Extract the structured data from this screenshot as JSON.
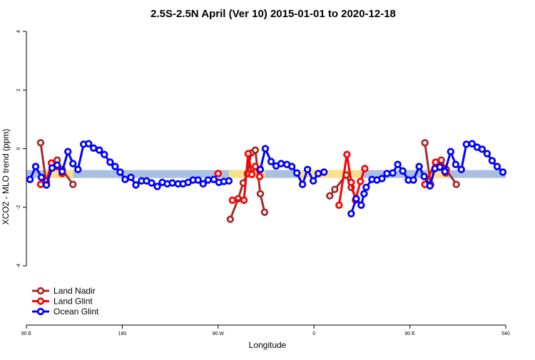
{
  "chart_data": {
    "type": "line",
    "title": "2.5S-2.5N April (Ver 10)   2015-01-01 to 2020-12-18",
    "x_label": "Longitude",
    "y_label": "XCO2 - MLO trend (ppm)",
    "xlim": [
      90,
      540
    ],
    "ylim": [
      -6.02,
      4.1
    ],
    "xticks": [
      {
        "value": 90,
        "label": "90 E"
      },
      180,
      {
        "value": 270,
        "label": "90 W"
      },
      {
        "value": 360,
        "label": "0"
      },
      {
        "value": 450,
        "label": "90 E"
      },
      540
    ],
    "yticks": [
      4,
      2,
      0,
      -2,
      -4
    ],
    "legend": "bottom-left",
    "band": {
      "low": -1.0,
      "high": -0.73,
      "color": "#a9c0e0"
    },
    "highlight": {
      "color": "#fde08a",
      "ranges": [
        [
          108,
          134
        ],
        [
          280,
          314
        ],
        [
          345,
          404
        ],
        [
          466,
          485
        ]
      ]
    },
    "series": [
      {
        "name": "Land Nadir",
        "color": "#a52a2a",
        "x": [
          103.4,
          108.8,
          113.5,
          118.9,
          123.6,
          133.7,
          null,
          281.4,
          288.8,
          293.5,
          297.5,
          300.9,
          304.9,
          309.6,
          313.6,
          null,
          374.8,
          379.5,
          390.2,
          394.9,
          399.6,
          null,
          464.1,
          469.5,
          474.2,
          479.5,
          484.2,
          493.6
        ],
        "values": [
          0.2,
          -1.22,
          -0.49,
          -0.39,
          -0.71,
          -1.22,
          null,
          -2.41,
          -1.71,
          -1.17,
          -0.85,
          -0.15,
          -0.05,
          -1.54,
          -2.17,
          null,
          -1.61,
          -1.39,
          -0.9,
          -1.32,
          -1.71,
          null,
          0.2,
          -1.22,
          -0.49,
          -0.39,
          -0.71,
          -1.22
        ]
      },
      {
        "name": "Land Glint",
        "color": "#ff0000",
        "x": [
          103.4,
          108.8,
          113.5,
          118.9,
          123.6,
          null,
          270.0,
          null,
          283.4,
          294.2,
          298.2,
          301.6,
          304.9,
          309.0,
          null,
          383.5,
          390.9,
          394.9,
          398.9,
          403.6,
          407.7,
          null,
          464.1,
          474.2,
          478.9,
          483.6
        ],
        "values": [
          -1.22,
          -1.12,
          -0.49,
          -0.61,
          -0.85,
          null,
          -0.85,
          null,
          -1.76,
          -1.76,
          -0.17,
          -0.88,
          -0.61,
          -0.95,
          null,
          -1.93,
          -0.2,
          -1.15,
          -1.76,
          -1.12,
          -0.68,
          null,
          -1.22,
          -0.46,
          -0.59,
          -0.83
        ]
      },
      {
        "name": "Ocean Glint",
        "color": "#0000ff",
        "x": [
          93.4,
          98.7,
          104.1,
          108.8,
          114.2,
          118.9,
          123.6,
          129.0,
          133.7,
          138.4,
          143.7,
          148.4,
          153.1,
          158.5,
          163.2,
          168.6,
          173.3,
          178.0,
          182.7,
          188.1,
          192.8,
          198.1,
          202.8,
          207.5,
          212.9,
          217.6,
          222.3,
          227.0,
          232.4,
          237.1,
          241.8,
          246.5,
          251.2,
          255.9,
          260.6,
          266.0,
          270.7,
          275.4,
          280.1,
          null,
          309.6,
          314.3,
          319.7,
          324.4,
          329.1,
          334.5,
          339.2,
          343.9,
          349.2,
          353.9,
          359.3,
          364.0,
          369.4,
          null,
          394.9,
          399.6,
          404.3,
          407.0,
          409.0,
          414.4,
          419.1,
          423.8,
          428.5,
          433.9,
          438.6,
          443.3,
          448.6,
          453.3,
          458.7,
          463.4,
          468.8,
          473.5,
          478.2,
          482.9,
          488.3,
          493.0,
          498.3,
          503.0,
          508.4,
          513.1,
          517.8,
          522.5,
          527.2,
          531.9,
          537.3
        ],
        "values": [
          -1.05,
          -0.61,
          -0.98,
          -1.24,
          -0.66,
          -0.56,
          -0.78,
          -0.1,
          -0.51,
          -0.71,
          0.15,
          0.17,
          0.02,
          -0.05,
          -0.2,
          -0.46,
          -0.61,
          -0.8,
          -1.05,
          -0.98,
          -1.24,
          -1.1,
          -1.1,
          -1.17,
          -1.29,
          -1.15,
          -1.2,
          -1.17,
          -1.2,
          -1.2,
          -1.15,
          -1.07,
          -1.07,
          -1.2,
          -1.07,
          -1.05,
          -1.15,
          -1.12,
          -1.1,
          null,
          -0.71,
          0.0,
          -0.44,
          -0.59,
          -0.51,
          -0.54,
          -0.61,
          -0.83,
          -1.22,
          -0.71,
          -1.1,
          -0.85,
          -0.8,
          null,
          -2.22,
          -1.71,
          -1.93,
          -1.54,
          -1.32,
          -1.05,
          -1.07,
          -1.02,
          -0.85,
          -0.83,
          -0.54,
          -0.76,
          -1.07,
          -1.07,
          -0.61,
          -0.95,
          -1.27,
          -0.68,
          -0.63,
          -0.78,
          -0.1,
          -0.54,
          -0.71,
          0.15,
          0.17,
          0.05,
          -0.02,
          -0.17,
          -0.41,
          -0.61,
          -0.8
        ]
      }
    ]
  }
}
